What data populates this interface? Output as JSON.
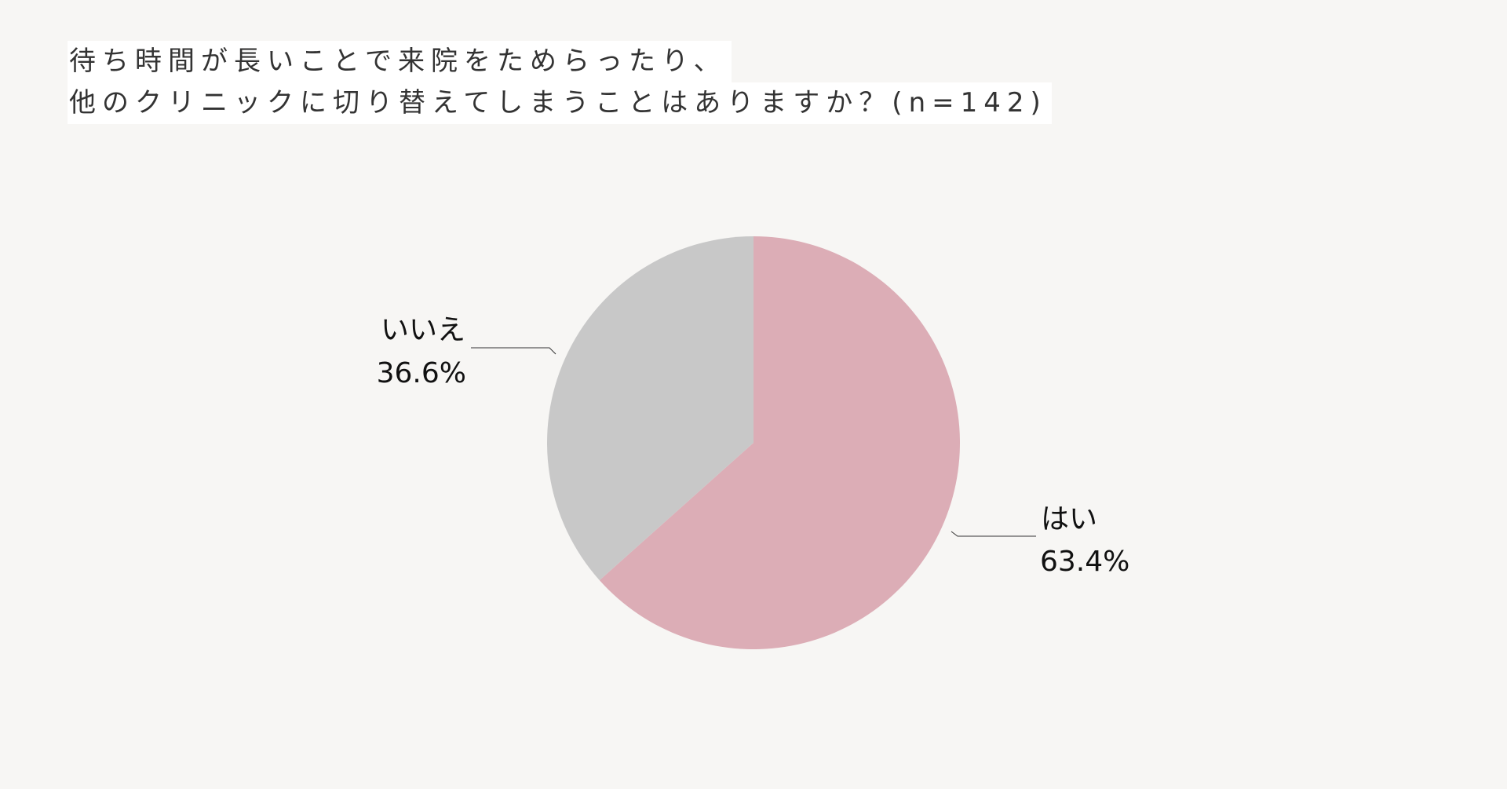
{
  "title": {
    "line1": "待ち時間が長いことで来院をためらったり、",
    "line2": "他のクリニックに切り替えてしまうことはありますか？(n=142)"
  },
  "colors": {
    "background": "#f7f6f4",
    "yes": "#dcadb6",
    "no": "#c8c8c8"
  },
  "chart_data": {
    "type": "pie",
    "title": "待ち時間が長いことで来院をためらったり、他のクリニックに切り替えてしまうことはありますか？(n=142)",
    "n": 142,
    "start": "12 o'clock",
    "direction": "clockwise",
    "slices": [
      {
        "label": "はい",
        "value": 63.4,
        "value_label": "63.4%",
        "color": "#dcadb6"
      },
      {
        "label": "いいえ",
        "value": 36.6,
        "value_label": "36.6%",
        "color": "#c8c8c8"
      }
    ]
  }
}
